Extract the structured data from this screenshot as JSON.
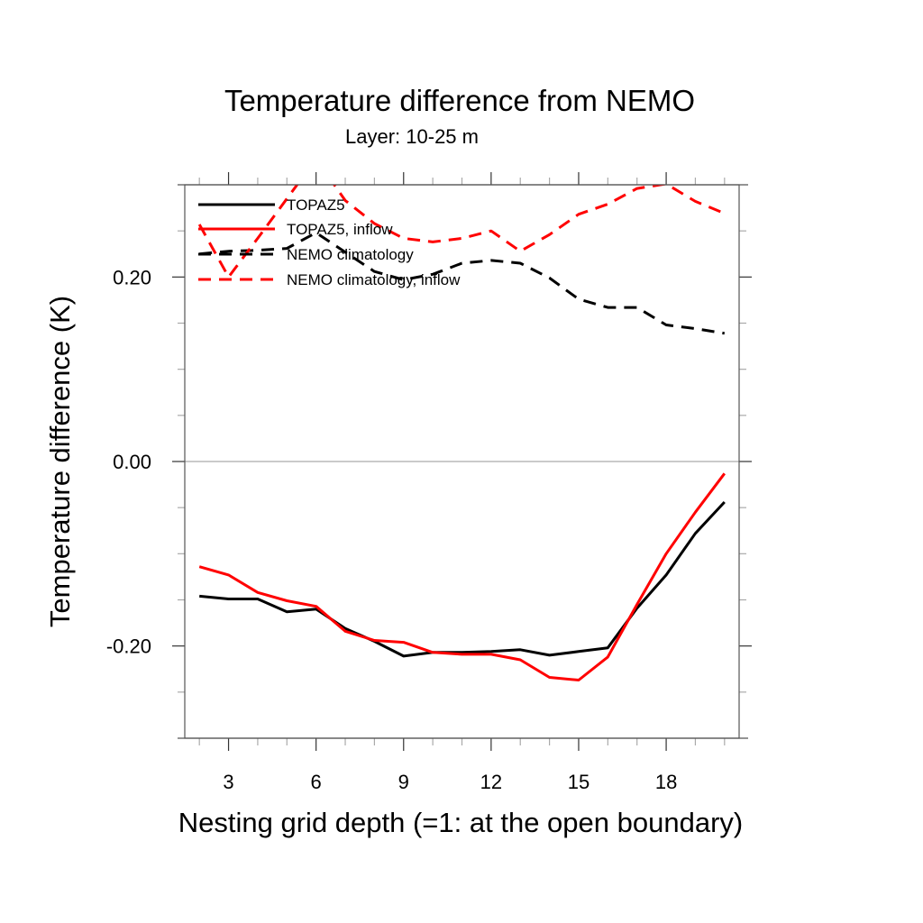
{
  "chart_data": {
    "type": "line",
    "title": "Temperature difference from NEMO",
    "subtitle": "Layer: 10-25 m",
    "xlabel": "Nesting grid depth (=1: at the open boundary)",
    "ylabel": "Temperature difference (K)",
    "xlim": [
      1.5,
      20.5
    ],
    "ylim": [
      -0.3,
      0.3
    ],
    "xticks": [
      3,
      6,
      9,
      12,
      15,
      18
    ],
    "xtick_labels": [
      "3",
      "6",
      "9",
      "12",
      "15",
      "18"
    ],
    "x_minor_step": 1,
    "yticks": [
      0.2,
      0.0,
      -0.2
    ],
    "ytick_labels": [
      "0.20",
      "0.00",
      "-0.20"
    ],
    "y_minor_step": 0.05,
    "zero_line": true,
    "grid": false,
    "legend_position": "top-left",
    "x": [
      2,
      3,
      4,
      5,
      6,
      7,
      8,
      9,
      10,
      11,
      12,
      13,
      14,
      15,
      16,
      17,
      18,
      19,
      20
    ],
    "series": [
      {
        "name": "TOPAZ5",
        "color": "#000000",
        "dash": "solid",
        "values": [
          -0.146,
          -0.149,
          -0.149,
          -0.163,
          -0.16,
          -0.181,
          -0.195,
          -0.211,
          -0.207,
          -0.207,
          -0.206,
          -0.204,
          -0.21,
          -0.206,
          -0.202,
          -0.159,
          -0.123,
          -0.078,
          -0.044
        ]
      },
      {
        "name": "TOPAZ5, inflow",
        "color": "#ff0000",
        "dash": "solid",
        "values": [
          -0.114,
          -0.123,
          -0.142,
          -0.151,
          -0.157,
          -0.184,
          -0.194,
          -0.196,
          -0.207,
          -0.209,
          -0.209,
          -0.215,
          -0.234,
          -0.237,
          -0.212,
          -0.155,
          -0.1,
          -0.055,
          -0.013
        ]
      },
      {
        "name": "NEMO climatology",
        "color": "#000000",
        "dash": "dashed",
        "values": [
          0.225,
          0.228,
          0.229,
          0.231,
          0.248,
          0.227,
          0.206,
          0.197,
          0.203,
          0.215,
          0.218,
          0.215,
          0.199,
          0.176,
          0.167,
          0.167,
          0.148,
          0.144,
          0.139
        ]
      },
      {
        "name": "NEMO climatology, inflow",
        "color": "#ff0000",
        "dash": "dashed",
        "values": [
          0.257,
          0.2,
          0.242,
          0.285,
          0.328,
          0.283,
          0.258,
          0.242,
          0.238,
          0.242,
          0.25,
          0.228,
          0.246,
          0.268,
          0.279,
          0.296,
          0.301,
          0.282,
          0.269
        ]
      }
    ]
  }
}
